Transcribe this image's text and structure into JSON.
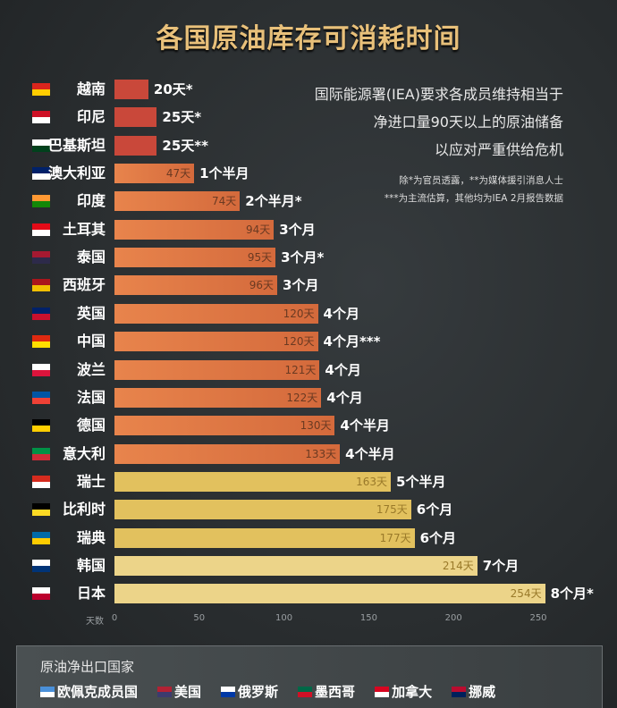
{
  "chart_data": {
    "type": "bar",
    "orientation": "horizontal",
    "title": "各国原油库存可消耗时间",
    "xlabel": "天数",
    "xlim": [
      0,
      250
    ],
    "xticks": [
      0,
      50,
      100,
      150,
      200,
      250
    ],
    "grid": false,
    "categories": [
      "越南",
      "印尼",
      "巴基斯坦",
      "澳大利亚",
      "印度",
      "土耳其",
      "泰国",
      "西班牙",
      "英国",
      "中国",
      "波兰",
      "法国",
      "德国",
      "意大利",
      "瑞士",
      "比利时",
      "瑞典",
      "韩国",
      "日本"
    ],
    "values": [
      20,
      25,
      25,
      47,
      74,
      94,
      95,
      96,
      120,
      120,
      121,
      122,
      130,
      133,
      163,
      175,
      177,
      214,
      254
    ],
    "value_labels": [
      "20天*",
      "25天*",
      "25天**",
      "47天",
      "74天",
      "94天",
      "95天",
      "96天",
      "120天",
      "120天",
      "121天",
      "122天",
      "130天",
      "133天",
      "163天",
      "175天",
      "177天",
      "214天",
      "254天"
    ],
    "month_labels": [
      "",
      "",
      "",
      "1个半月",
      "2个半月*",
      "3个月",
      "3个月*",
      "3个月",
      "4个月",
      "4个月***",
      "4个月",
      "4个月",
      "4个半月",
      "4个半月",
      "5个半月",
      "6个月",
      "6个月",
      "7个月",
      "8个月*"
    ],
    "flag_colors": [
      [
        "#da251d",
        "#ffcd00"
      ],
      [
        "#ce1126",
        "#ffffff"
      ],
      [
        "#ffffff",
        "#01411c"
      ],
      [
        "#012169",
        "#ffffff"
      ],
      [
        "#ff9933",
        "#138808"
      ],
      [
        "#e30a17",
        "#ffffff"
      ],
      [
        "#a51931",
        "#2d2a4a"
      ],
      [
        "#aa151b",
        "#f1bf00"
      ],
      [
        "#012169",
        "#c8102e"
      ],
      [
        "#de2910",
        "#ffde00"
      ],
      [
        "#ffffff",
        "#dc143c"
      ],
      [
        "#0055a4",
        "#ef4135"
      ],
      [
        "#000000",
        "#ffce00"
      ],
      [
        "#009246",
        "#ce2b37"
      ],
      [
        "#d52b1e",
        "#ffffff"
      ],
      [
        "#000000",
        "#fdda24"
      ],
      [
        "#006aa7",
        "#fecc00"
      ],
      [
        "#ffffff",
        "#003478"
      ],
      [
        "#ffffff",
        "#bc002d"
      ]
    ],
    "colors": {
      "red": "#c9483a",
      "orange_start": "#e8844c",
      "orange_end": "#d46a3c",
      "yellow": "#e2c15e",
      "yellow_light": "#ecd489"
    }
  },
  "notes": {
    "lines": [
      "国际能源署(IEA)要求各成员维持相当于",
      "净进口量90天以上的原油储备",
      "以应对严重供给危机"
    ],
    "footnotes": [
      "除*为官员透露，**为媒体援引消息人士",
      "***为主流估算，其他均为IEA 2月报告数据"
    ]
  },
  "legend": {
    "title": "原油净出口国家",
    "items": [
      {
        "label": "欧佩克成员国",
        "colors": [
          "#4a90d9",
          "#ffffff"
        ]
      },
      {
        "label": "美国",
        "colors": [
          "#b22234",
          "#3c3b6e"
        ]
      },
      {
        "label": "俄罗斯",
        "colors": [
          "#ffffff",
          "#0039a6"
        ]
      },
      {
        "label": "墨西哥",
        "colors": [
          "#006847",
          "#ce1126"
        ]
      },
      {
        "label": "加拿大",
        "colors": [
          "#d80621",
          "#ffffff"
        ]
      },
      {
        "label": "挪威",
        "colors": [
          "#ba0c2f",
          "#00205b"
        ]
      }
    ]
  }
}
